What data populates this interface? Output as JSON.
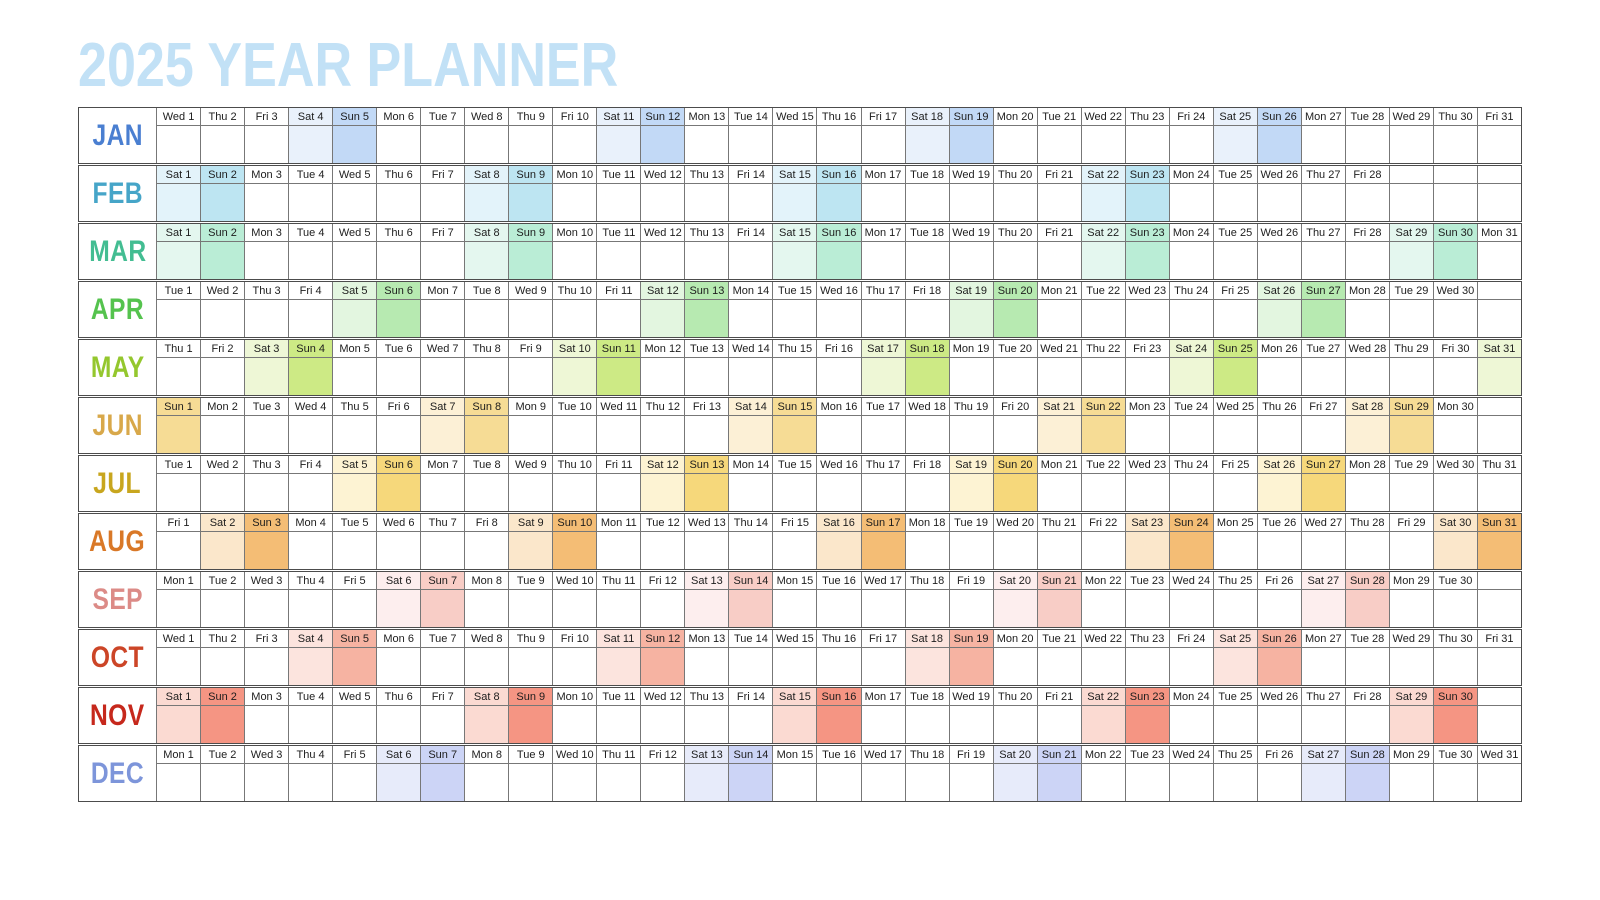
{
  "title": "2025 YEAR PLANNER",
  "colors": {
    "title": "#c2e1f6",
    "grid_outer": "#4c4c4c",
    "grid_inner": "#777777",
    "day_text": "#1d1d1d"
  },
  "grid": {
    "columns": 31
  },
  "months": [
    {
      "label": "JAN",
      "color": "#4a7fd1",
      "sat_fill": "#e9f1fb",
      "sun_fill": "#c2d9f6",
      "days": [
        "Wed 1",
        "Thu 2",
        "Fri 3",
        "Sat 4",
        "Sun 5",
        "Mon 6",
        "Tue 7",
        "Wed 8",
        "Thu 9",
        "Fri 10",
        "Sat 11",
        "Sun 12",
        "Mon 13",
        "Tue 14",
        "Wed 15",
        "Thu 16",
        "Fri 17",
        "Sat 18",
        "Sun 19",
        "Mon 20",
        "Tue 21",
        "Wed 22",
        "Thu 23",
        "Fri 24",
        "Sat 25",
        "Sun 26",
        "Mon 27",
        "Tue 28",
        "Wed 29",
        "Thu 30",
        "Fri 31"
      ]
    },
    {
      "label": "FEB",
      "color": "#46a5c8",
      "sat_fill": "#e3f3fa",
      "sun_fill": "#bde5f2",
      "days": [
        "Sat 1",
        "Sun 2",
        "Mon 3",
        "Tue 4",
        "Wed 5",
        "Thu 6",
        "Fri 7",
        "Sat 8",
        "Sun 9",
        "Mon 10",
        "Tue 11",
        "Wed 12",
        "Thu 13",
        "Fri 14",
        "Sat 15",
        "Sun 16",
        "Mon 17",
        "Tue 18",
        "Wed 19",
        "Thu 20",
        "Fri 21",
        "Sat 22",
        "Sun 23",
        "Mon 24",
        "Tue 25",
        "Wed 26",
        "Thu 27",
        "Fri 28"
      ]
    },
    {
      "label": "MAR",
      "color": "#43bd92",
      "sat_fill": "#e4f7ef",
      "sun_fill": "#baedd6",
      "days": [
        "Sat 1",
        "Sun 2",
        "Mon 3",
        "Tue 4",
        "Wed 5",
        "Thu 6",
        "Fri 7",
        "Sat 8",
        "Sun 9",
        "Mon 10",
        "Tue 11",
        "Wed 12",
        "Thu 13",
        "Fri 14",
        "Sat 15",
        "Sun 16",
        "Mon 17",
        "Tue 18",
        "Wed 19",
        "Thu 20",
        "Fri 21",
        "Sat 22",
        "Sun 23",
        "Mon 24",
        "Tue 25",
        "Wed 26",
        "Thu 27",
        "Fri 28",
        "Sat 29",
        "Sun 30",
        "Mon 31"
      ]
    },
    {
      "label": "APR",
      "color": "#55c34e",
      "sat_fill": "#e3f6e0",
      "sun_fill": "#b7eab1",
      "days": [
        "Tue 1",
        "Wed 2",
        "Thu 3",
        "Fri 4",
        "Sat 5",
        "Sun 6",
        "Mon 7",
        "Tue 8",
        "Wed 9",
        "Thu 10",
        "Fri 11",
        "Sat 12",
        "Sun 13",
        "Mon 14",
        "Tue 15",
        "Wed 16",
        "Thu 17",
        "Fri 18",
        "Sat 19",
        "Sun 20",
        "Mon 21",
        "Tue 22",
        "Wed 23",
        "Thu 24",
        "Fri 25",
        "Sat 26",
        "Sun 27",
        "Mon 28",
        "Tue 29",
        "Wed 30"
      ]
    },
    {
      "label": "MAY",
      "color": "#94c72e",
      "sat_fill": "#eef7d6",
      "sun_fill": "#cdea85",
      "days": [
        "Thu 1",
        "Fri 2",
        "Sat 3",
        "Sun 4",
        "Mon 5",
        "Tue 6",
        "Wed 7",
        "Thu 8",
        "Fri 9",
        "Sat 10",
        "Sun 11",
        "Mon 12",
        "Tue 13",
        "Wed 14",
        "Thu 15",
        "Fri 16",
        "Sat 17",
        "Sun 18",
        "Mon 19",
        "Tue 20",
        "Wed 21",
        "Thu 22",
        "Fri 23",
        "Sat 24",
        "Sun 25",
        "Mon 26",
        "Tue 27",
        "Wed 28",
        "Thu 29",
        "Fri 30",
        "Sat 31"
      ]
    },
    {
      "label": "JUN",
      "color": "#d8a84a",
      "sat_fill": "#fcf0d6",
      "sun_fill": "#f6dc95",
      "days": [
        "Sun 1",
        "Mon 2",
        "Tue 3",
        "Wed 4",
        "Thu 5",
        "Fri 6",
        "Sat 7",
        "Sun 8",
        "Mon 9",
        "Tue 10",
        "Wed 11",
        "Thu 12",
        "Fri 13",
        "Sat 14",
        "Sun 15",
        "Mon 16",
        "Tue 17",
        "Wed 18",
        "Thu 19",
        "Fri 20",
        "Sat 21",
        "Sun 22",
        "Mon 23",
        "Tue 24",
        "Wed 25",
        "Thu 26",
        "Fri 27",
        "Sat 28",
        "Sun 29",
        "Mon 30"
      ]
    },
    {
      "label": "JUL",
      "color": "#c8a61e",
      "sat_fill": "#fdf3d3",
      "sun_fill": "#f6d87b",
      "days": [
        "Tue 1",
        "Wed 2",
        "Thu 3",
        "Fri 4",
        "Sat 5",
        "Sun 6",
        "Mon 7",
        "Tue 8",
        "Wed 9",
        "Thu 10",
        "Fri 11",
        "Sat 12",
        "Sun 13",
        "Mon 14",
        "Tue 15",
        "Wed 16",
        "Thu 17",
        "Fri 18",
        "Sat 19",
        "Sun 20",
        "Mon 21",
        "Tue 22",
        "Wed 23",
        "Thu 24",
        "Fri 25",
        "Sat 26",
        "Sun 27",
        "Mon 28",
        "Tue 29",
        "Wed 30",
        "Thu 31"
      ]
    },
    {
      "label": "AUG",
      "color": "#d97827",
      "sat_fill": "#fbe7cb",
      "sun_fill": "#f4bd75",
      "days": [
        "Fri 1",
        "Sat 2",
        "Sun 3",
        "Mon 4",
        "Tue 5",
        "Wed 6",
        "Thu 7",
        "Fri 8",
        "Sat 9",
        "Sun 10",
        "Mon 11",
        "Tue 12",
        "Wed 13",
        "Thu 14",
        "Fri 15",
        "Sat 16",
        "Sun 17",
        "Mon 18",
        "Tue 19",
        "Wed 20",
        "Thu 21",
        "Fri 22",
        "Sat 23",
        "Sun 24",
        "Mon 25",
        "Tue 26",
        "Wed 27",
        "Thu 28",
        "Fri 29",
        "Sat 30",
        "Sun 31"
      ]
    },
    {
      "label": "SEP",
      "color": "#dc8b87",
      "sat_fill": "#fdeeee",
      "sun_fill": "#f8cdc6",
      "days": [
        "Mon 1",
        "Tue 2",
        "Wed 3",
        "Thu 4",
        "Fri 5",
        "Sat 6",
        "Sun 7",
        "Mon 8",
        "Tue 9",
        "Wed 10",
        "Thu 11",
        "Fri 12",
        "Sat 13",
        "Sun 14",
        "Mon 15",
        "Tue 16",
        "Wed 17",
        "Thu 18",
        "Fri 19",
        "Sat 20",
        "Sun 21",
        "Mon 22",
        "Tue 23",
        "Wed 24",
        "Thu 25",
        "Fri 26",
        "Sat 27",
        "Sun 28",
        "Mon 29",
        "Tue 30"
      ]
    },
    {
      "label": "OCT",
      "color": "#cc4527",
      "sat_fill": "#fce4de",
      "sun_fill": "#f6b3a2",
      "days": [
        "Wed 1",
        "Thu 2",
        "Fri 3",
        "Sat 4",
        "Sun 5",
        "Mon 6",
        "Tue 7",
        "Wed 8",
        "Thu 9",
        "Fri 10",
        "Sat 11",
        "Sun 12",
        "Mon 13",
        "Tue 14",
        "Wed 15",
        "Thu 16",
        "Fri 17",
        "Sat 18",
        "Sun 19",
        "Mon 20",
        "Tue 21",
        "Wed 22",
        "Thu 23",
        "Fri 24",
        "Sat 25",
        "Sun 26",
        "Mon 27",
        "Tue 28",
        "Wed 29",
        "Thu 30",
        "Fri 31"
      ]
    },
    {
      "label": "NOV",
      "color": "#c6281c",
      "sat_fill": "#fbdad2",
      "sun_fill": "#f59583",
      "days": [
        "Sat 1",
        "Sun 2",
        "Mon 3",
        "Tue 4",
        "Wed 5",
        "Thu 6",
        "Fri 7",
        "Sat 8",
        "Sun 9",
        "Mon 10",
        "Tue 11",
        "Wed 12",
        "Thu 13",
        "Fri 14",
        "Sat 15",
        "Sun 16",
        "Mon 17",
        "Tue 18",
        "Wed 19",
        "Thu 20",
        "Fri 21",
        "Sat 22",
        "Sun 23",
        "Mon 24",
        "Tue 25",
        "Wed 26",
        "Thu 27",
        "Fri 28",
        "Sat 29",
        "Sun 30"
      ]
    },
    {
      "label": "DEC",
      "color": "#7d95da",
      "sat_fill": "#e7ebfa",
      "sun_fill": "#ccd4f6",
      "days": [
        "Mon 1",
        "Tue 2",
        "Wed 3",
        "Thu 4",
        "Fri 5",
        "Sat 6",
        "Sun 7",
        "Mon 8",
        "Tue 9",
        "Wed 10",
        "Thu 11",
        "Fri 12",
        "Sat 13",
        "Sun 14",
        "Mon 15",
        "Tue 16",
        "Wed 17",
        "Thu 18",
        "Fri 19",
        "Sat 20",
        "Sun 21",
        "Mon 22",
        "Tue 23",
        "Wed 24",
        "Thu 25",
        "Fri 26",
        "Sat 27",
        "Sun 28",
        "Mon 29",
        "Tue 30",
        "Wed 31"
      ]
    }
  ]
}
